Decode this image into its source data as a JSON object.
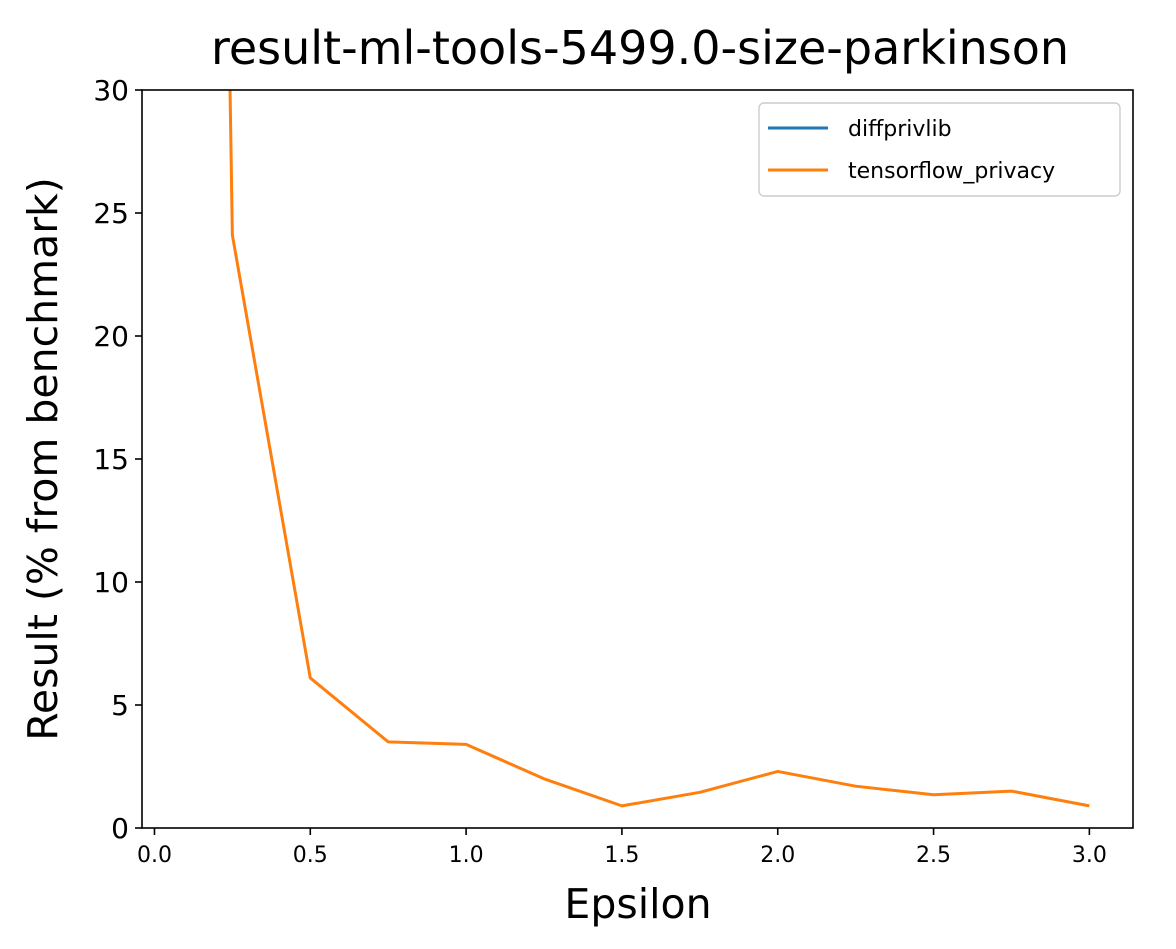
{
  "chart_data": {
    "type": "line",
    "title": "result-ml-tools-5499.0-size-parkinson",
    "xlabel": "Epsilon",
    "ylabel": "Result (% from benchmark)",
    "xlim": [
      -0.04,
      3.14
    ],
    "ylim": [
      0,
      30
    ],
    "xticks": [
      "0.0",
      "0.5",
      "1.0",
      "1.5",
      "2.0",
      "2.5",
      "3.0"
    ],
    "xtick_values": [
      0.0,
      0.5,
      1.0,
      1.5,
      2.0,
      2.5,
      3.0
    ],
    "yticks": [
      "0",
      "5",
      "10",
      "15",
      "20",
      "25",
      "30"
    ],
    "ytick_values": [
      0,
      5,
      10,
      15,
      20,
      25,
      30
    ],
    "grid": false,
    "legend_position": "top-right",
    "series": [
      {
        "name": "diffprivlib",
        "color": "#1f77b4",
        "x": [],
        "y": []
      },
      {
        "name": "tensorflow_privacy",
        "color": "#ff7f0e",
        "x": [
          0.24,
          0.25,
          0.5,
          0.75,
          1.0,
          1.25,
          1.5,
          1.75,
          2.0,
          2.25,
          2.5,
          2.75,
          3.0
        ],
        "y": [
          32,
          24.1,
          6.1,
          3.5,
          3.4,
          2.0,
          0.9,
          1.45,
          2.3,
          1.7,
          1.35,
          1.5,
          0.9
        ]
      }
    ]
  }
}
